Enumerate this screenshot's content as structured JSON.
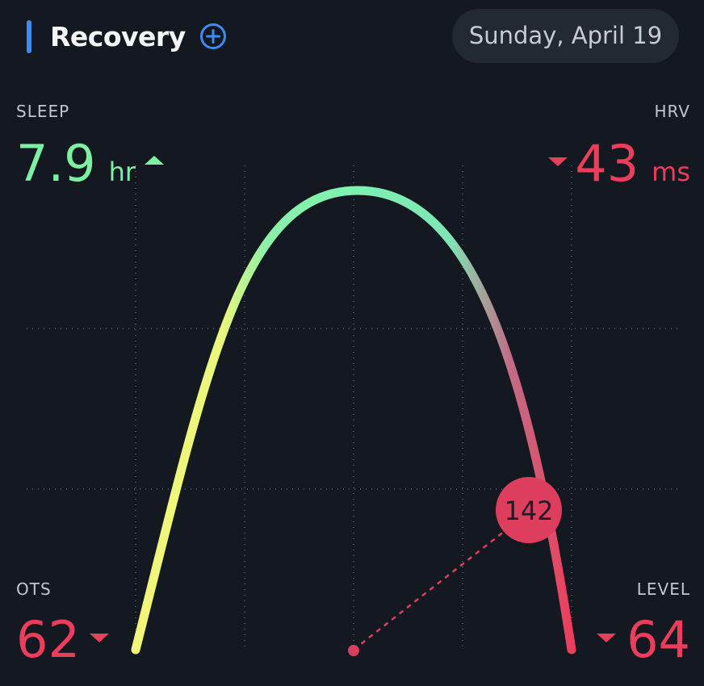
{
  "header": {
    "title": "Recovery",
    "date": "Sunday, April 19",
    "icons": {
      "add": "plus-circle-icon"
    }
  },
  "stats": {
    "sleep": {
      "label": "SLEEP",
      "value": "7.9",
      "unit": "hr",
      "trend": "up"
    },
    "hrv": {
      "label": "HRV",
      "value": "43",
      "unit": "ms",
      "trend": "down"
    },
    "ots": {
      "label": "OTS",
      "value": "62",
      "trend": "down"
    },
    "level": {
      "label": "LEVEL",
      "value": "64",
      "trend": "down"
    }
  },
  "marker": {
    "value": "142"
  },
  "colors": {
    "accent": "#3f8cf0",
    "positive": "#7ef0a4",
    "negative": "#ec3e5c",
    "curve_start": "#f2f57a",
    "curve_peak": "#7cf2b2",
    "curve_end": "#ec3e5c"
  }
}
